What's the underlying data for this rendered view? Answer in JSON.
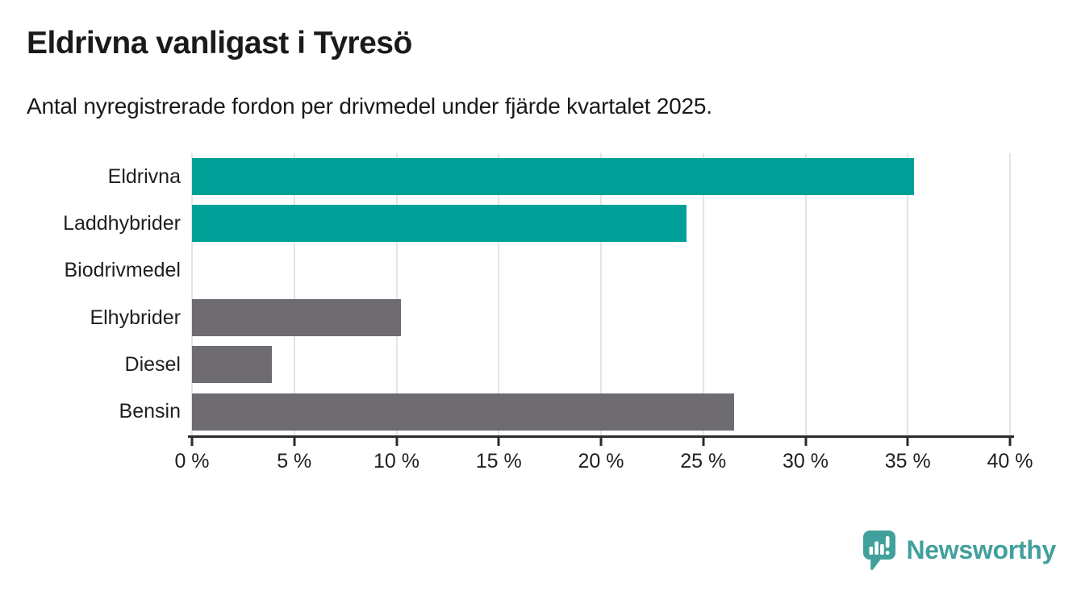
{
  "header": {
    "title": "Eldrivna vanligast i Tyresö",
    "subtitle": "Antal nyregistrerade fordon per drivmedel under fjärde kvartalet 2025."
  },
  "chart_data": {
    "type": "bar",
    "orientation": "horizontal",
    "title": "Eldrivna vanligast i Tyresö",
    "xlabel": "",
    "ylabel": "",
    "categories": [
      "Eldrivna",
      "Laddhybrider",
      "Biodrivmedel",
      "Elhybrider",
      "Diesel",
      "Bensin"
    ],
    "values": [
      35.3,
      24.2,
      0,
      10.2,
      3.9,
      26.5
    ],
    "unit": "%",
    "bar_colors": [
      "#00a099",
      "#00a099",
      "#6e6c70",
      "#6e6c70",
      "#6e6c70",
      "#6e6c70"
    ],
    "xlim": [
      0,
      40
    ],
    "xticks": [
      0,
      5,
      10,
      15,
      20,
      25,
      30,
      35,
      40
    ],
    "xtick_labels": [
      "0 %",
      "5 %",
      "10 %",
      "15 %",
      "20 %",
      "25 %",
      "30 %",
      "35 %",
      "40 %"
    ],
    "grid": "vertical",
    "legend": "none"
  },
  "colors": {
    "highlight_teal": "#00a099",
    "neutral_gray": "#6e6c70",
    "gridline": "#e4e4e4",
    "axis": "#2b2b2b",
    "text": "#1a1a1a",
    "brand_teal": "#42a09c"
  },
  "footer": {
    "brand": "Newsworthy"
  }
}
